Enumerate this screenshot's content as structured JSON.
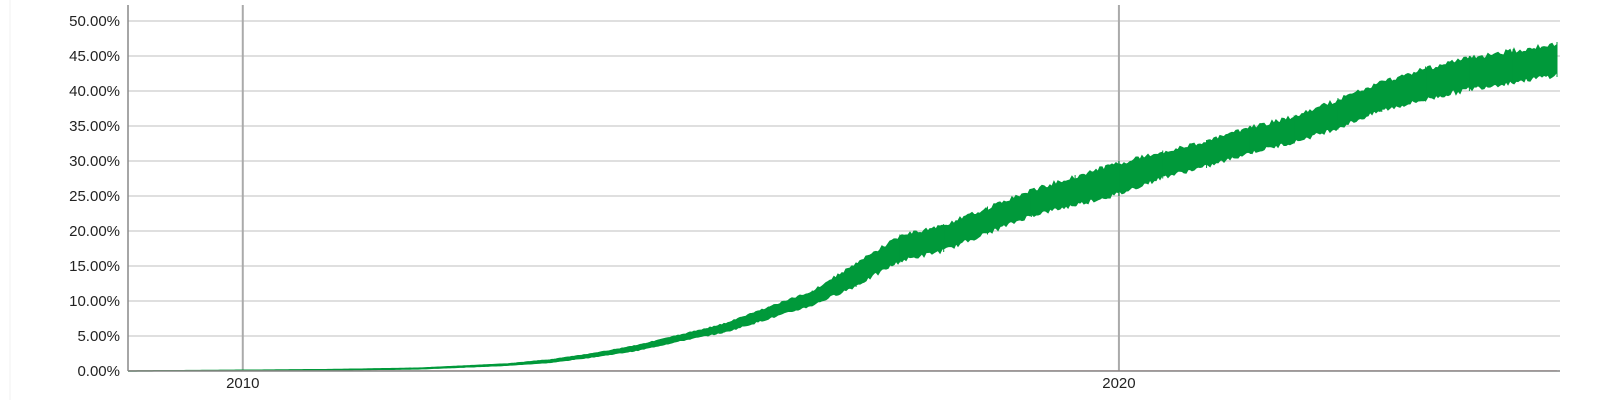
{
  "chart_data": {
    "type": "area",
    "title": "",
    "xlabel": "",
    "ylabel": "",
    "xlim": [
      2008.69,
      2025.0
    ],
    "ylim": [
      0,
      50
    ],
    "grid": true,
    "legend": "none",
    "x_ticks": [
      {
        "value": 2010,
        "label": "2010"
      },
      {
        "value": 2020,
        "label": "2020"
      }
    ],
    "y_ticks": [
      {
        "value": 0,
        "label": "0.00%"
      },
      {
        "value": 5,
        "label": "5.00%"
      },
      {
        "value": 10,
        "label": "10.00%"
      },
      {
        "value": 15,
        "label": "15.00%"
      },
      {
        "value": 20,
        "label": "20.00%"
      },
      {
        "value": 25,
        "label": "25.00%"
      },
      {
        "value": 30,
        "label": "30.00%"
      },
      {
        "value": 35,
        "label": "35.00%"
      },
      {
        "value": 40,
        "label": "40.00%"
      },
      {
        "value": 45,
        "label": "45.00%"
      },
      {
        "value": 50,
        "label": "50.00%"
      }
    ],
    "colors": {
      "series": "#00993a",
      "secondary": "#e06666",
      "grid": "#cccccc",
      "year_grid": "#aaaaaa"
    },
    "series": [
      {
        "x": [
          2008.69,
          2010,
          2011,
          2012,
          2013,
          2013.5,
          2014,
          2014.5,
          2015,
          2015.5,
          2016,
          2016.5,
          2017,
          2017.5,
          2018,
          2018.5,
          2019,
          2019.5,
          2020,
          2020.5,
          2021,
          2021.5,
          2022,
          2022.5,
          2023,
          2023.5,
          2024,
          2024.5,
          2025.0
        ],
        "low": [
          0.0,
          0.1,
          0.15,
          0.3,
          0.8,
          1.2,
          2.0,
          2.9,
          4.3,
          5.5,
          7.4,
          9.3,
          12.0,
          15.5,
          17.0,
          19.5,
          22.0,
          23.5,
          25.0,
          27.5,
          29.0,
          31.0,
          32.5,
          34.5,
          37.0,
          38.5,
          40.0,
          41.0,
          42.0
        ],
        "high": [
          0.0,
          0.1,
          0.2,
          0.4,
          1.0,
          1.6,
          2.5,
          3.7,
          5.2,
          6.8,
          9.2,
          11.5,
          15.5,
          19.5,
          21.0,
          23.5,
          26.0,
          28.0,
          30.0,
          31.5,
          33.0,
          35.0,
          36.5,
          39.0,
          41.5,
          43.5,
          45.0,
          46.0,
          47.0
        ]
      },
      {
        "x": [
          2008.69,
          2025.0
        ],
        "low": [
          0.0,
          0.0
        ],
        "high": [
          0.05,
          0.05
        ]
      }
    ]
  }
}
